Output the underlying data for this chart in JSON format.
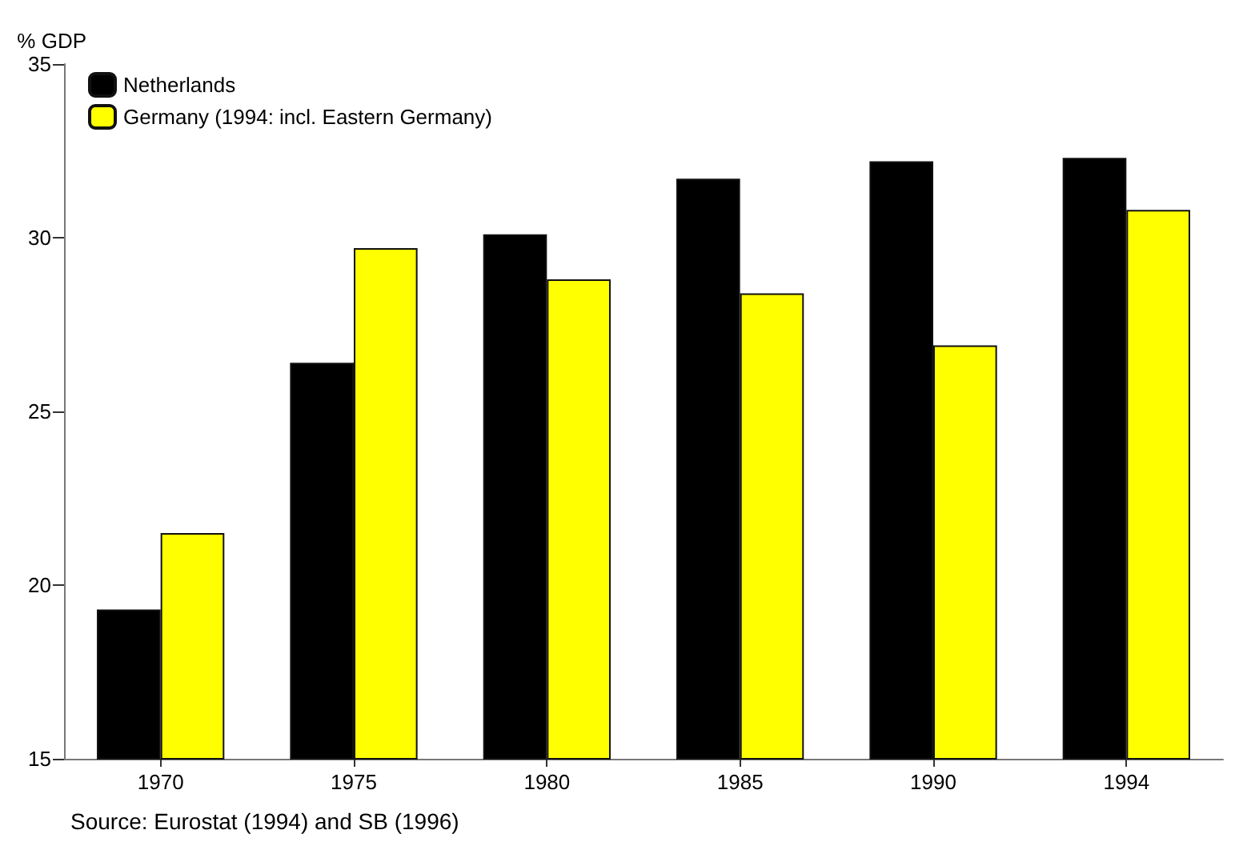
{
  "chart_data": {
    "type": "bar",
    "ylabel": "% GDP",
    "categories": [
      "1970",
      "1975",
      "1980",
      "1985",
      "1990",
      "1994"
    ],
    "series": [
      {
        "name": "Netherlands",
        "color": "#000000",
        "values": [
          19.3,
          26.4,
          30.1,
          31.7,
          32.2,
          32.3
        ]
      },
      {
        "name": "Germany (1994: incl. Eastern Germany)",
        "color": "#ffff00",
        "values": [
          21.5,
          29.7,
          28.8,
          28.4,
          26.9,
          30.8
        ]
      }
    ],
    "ylim": [
      15,
      35
    ],
    "yticks": [
      15,
      20,
      25,
      30,
      35
    ],
    "grid": false,
    "legend": "top left",
    "annotations": [
      "Source: Eurostat (1994) and SB (1996)"
    ]
  }
}
